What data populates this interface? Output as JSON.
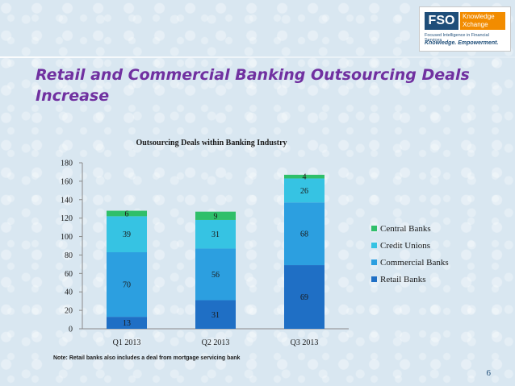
{
  "slide": {
    "title": "Retail and Commercial Banking Outsourcing Deals Increase",
    "page_number": "6",
    "note": "Note: Retail banks also includes a deal from mortgage servicing bank"
  },
  "logo": {
    "name": "FSO",
    "product_line1": "Knowledge",
    "product_line2": "Xchange",
    "subtitle": "Focused Intelligence in Financial Services",
    "tagline": "Knowledge. Empowerment."
  },
  "chart_data": {
    "type": "bar",
    "stacked": true,
    "title": "Outsourcing Deals within Banking Industry",
    "categories": [
      "Q1 2013",
      "Q2 2013",
      "Q3 2013"
    ],
    "series": [
      {
        "name": "Retail Banks",
        "values": [
          13,
          31,
          69
        ],
        "color": "#1f6fc5"
      },
      {
        "name": "Commercial Banks",
        "values": [
          70,
          56,
          68
        ],
        "color": "#2c9fe0"
      },
      {
        "name": "Credit Unions",
        "values": [
          39,
          31,
          26
        ],
        "color": "#36c3e3"
      },
      {
        "name": "Central Banks",
        "values": [
          6,
          9,
          4
        ],
        "color": "#2fbf6a"
      }
    ],
    "ylim": [
      0,
      180
    ],
    "yticks": [
      0,
      20,
      40,
      60,
      80,
      100,
      120,
      140,
      160,
      180
    ],
    "legend_position": "right",
    "legend_order": [
      "Central Banks",
      "Credit Unions",
      "Commercial Banks",
      "Retail Banks"
    ],
    "grid": false
  }
}
